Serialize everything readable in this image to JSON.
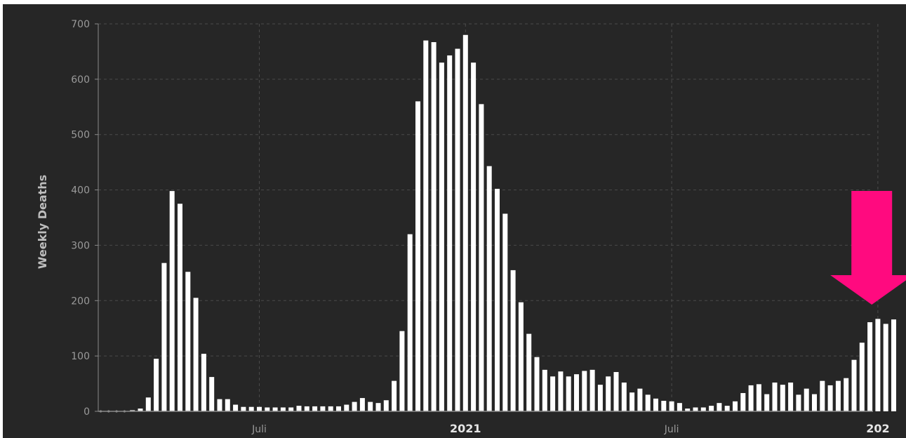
{
  "chart_data": {
    "type": "bar",
    "ylabel": "Weekly Deaths",
    "ylim": [
      0,
      700
    ],
    "yticks": [
      "0",
      "100",
      "200",
      "300",
      "400",
      "500",
      "600",
      "700"
    ],
    "grid": true,
    "x_tick_labels": [
      {
        "label": "Juli",
        "week": 20,
        "major": false
      },
      {
        "label": "2021",
        "week": 46,
        "major": true
      },
      {
        "label": "Juli",
        "week": 72,
        "major": false
      },
      {
        "label": "202",
        "week": 98,
        "major": true
      }
    ],
    "values": [
      0,
      0,
      0,
      0,
      2,
      5,
      25,
      95,
      268,
      398,
      375,
      252,
      205,
      104,
      62,
      22,
      22,
      12,
      8,
      8,
      8,
      7,
      7,
      7,
      7,
      10,
      9,
      9,
      9,
      9,
      9,
      12,
      17,
      24,
      17,
      15,
      20,
      55,
      145,
      320,
      560,
      670,
      667,
      630,
      643,
      655,
      680,
      630,
      555,
      443,
      402,
      357,
      255,
      197,
      140,
      98,
      75,
      63,
      72,
      63,
      67,
      73,
      75,
      48,
      63,
      71,
      52,
      34,
      41,
      30,
      23,
      19,
      18,
      15,
      5,
      7,
      7,
      10,
      15,
      10,
      18,
      33,
      47,
      49,
      31,
      52,
      48,
      52,
      30,
      41,
      31,
      55,
      47,
      55,
      60,
      93,
      124,
      161,
      167,
      158,
      166
    ],
    "bar_color": "#ffffff",
    "annotation": {
      "shape": "down-arrow",
      "color": "#ff0a7f",
      "target_week": 99
    }
  }
}
